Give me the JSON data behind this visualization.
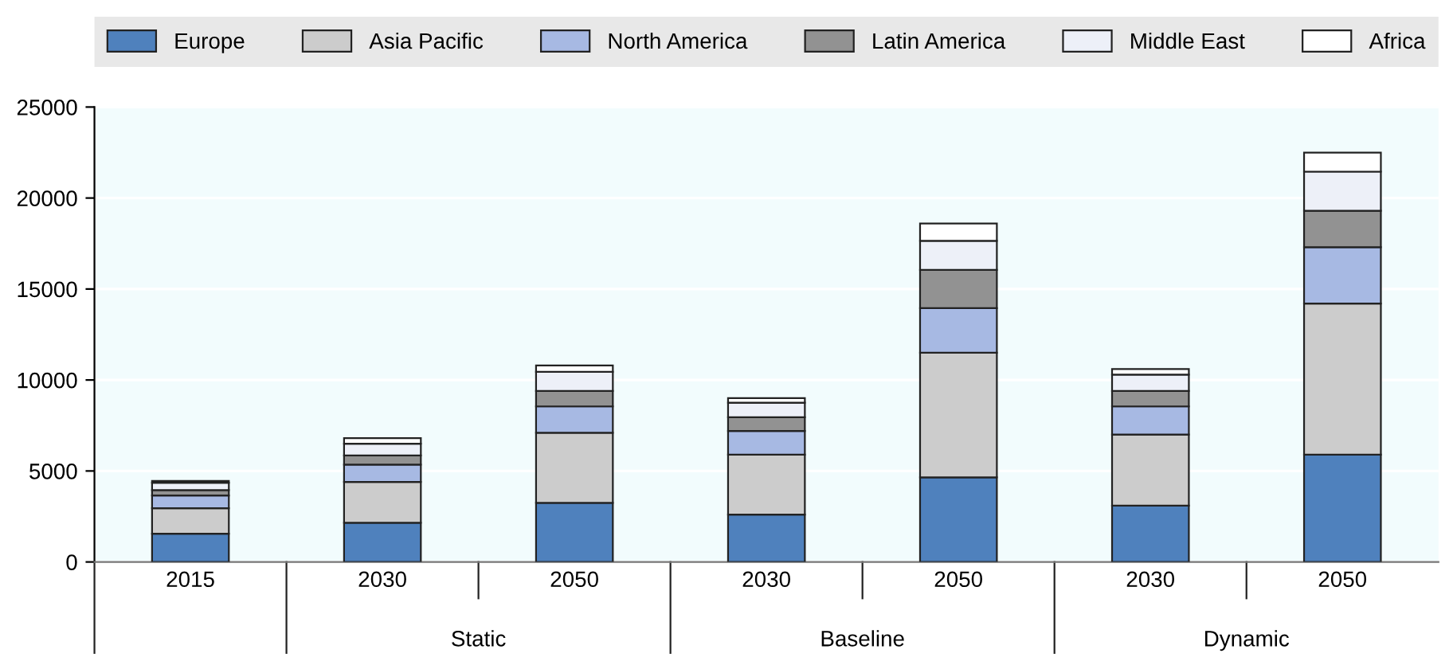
{
  "chart_data": {
    "type": "bar",
    "stacked": true,
    "categories": [
      "2015",
      "2030",
      "2050",
      "2030",
      "2050",
      "2030",
      "2050"
    ],
    "series": [
      {
        "name": "Europe",
        "color": "#4f81bd",
        "values": [
          1550,
          2150,
          3250,
          2600,
          4650,
          3100,
          5900
        ]
      },
      {
        "name": "Asia Pacific",
        "color": "#cccccc",
        "values": [
          1400,
          2250,
          3850,
          3300,
          6850,
          3900,
          8300
        ]
      },
      {
        "name": "North America",
        "color": "#a7b9e3",
        "values": [
          700,
          950,
          1450,
          1300,
          2450,
          1550,
          3100
        ]
      },
      {
        "name": "Latin America",
        "color": "#929292",
        "values": [
          300,
          500,
          850,
          750,
          2100,
          850,
          2000
        ]
      },
      {
        "name": "Middle East",
        "color": "#edf0f8",
        "values": [
          400,
          650,
          1050,
          800,
          1600,
          900,
          2150
        ]
      },
      {
        "name": "Africa",
        "color": "#ffffff",
        "values": [
          100,
          300,
          350,
          250,
          950,
          300,
          1050
        ]
      }
    ],
    "annotations": [
      "Static",
      "Baseline",
      "Dynamic"
    ],
    "ylim": [
      0,
      25000
    ],
    "yticks": [
      0,
      5000,
      10000,
      15000,
      20000,
      25000
    ],
    "grid": "y",
    "legend": "top"
  }
}
